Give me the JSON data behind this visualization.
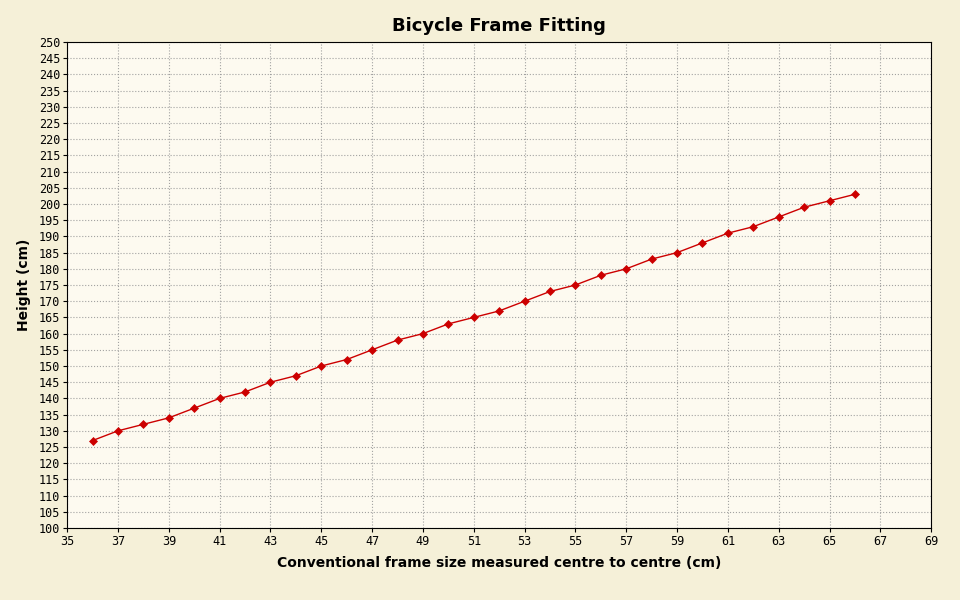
{
  "title": "Bicycle Frame Fitting",
  "xlabel": "Conventional frame size measured centre to centre (cm)",
  "ylabel": "Height (cm)",
  "background_color": "#F5F0D8",
  "plot_background_color": "#FDFAF0",
  "line_color": "#CC0000",
  "marker_color": "#CC0000",
  "x_data": [
    36,
    37,
    38,
    39,
    40,
    41,
    42,
    43,
    44,
    45,
    46,
    47,
    48,
    49,
    50,
    51,
    52,
    53,
    54,
    55,
    56,
    57,
    58,
    59,
    60,
    61,
    62,
    63,
    64,
    65,
    66
  ],
  "y_data": [
    127,
    130,
    132,
    134,
    137,
    140,
    142,
    145,
    147,
    150,
    152,
    155,
    158,
    160,
    163,
    165,
    167,
    170,
    173,
    175,
    178,
    180,
    183,
    185,
    188,
    191,
    193,
    196,
    199,
    201,
    203
  ],
  "xlim": [
    35,
    69
  ],
  "ylim": [
    100,
    250
  ],
  "xticks": [
    35,
    37,
    39,
    41,
    43,
    45,
    47,
    49,
    51,
    53,
    55,
    57,
    59,
    61,
    63,
    65,
    67,
    69
  ],
  "yticks": [
    100,
    105,
    110,
    115,
    120,
    125,
    130,
    135,
    140,
    145,
    150,
    155,
    160,
    165,
    170,
    175,
    180,
    185,
    190,
    195,
    200,
    205,
    210,
    215,
    220,
    225,
    230,
    235,
    240,
    245,
    250
  ],
  "title_fontsize": 13,
  "label_fontsize": 10,
  "tick_fontsize": 8.5,
  "spine_color": "#000000",
  "grid_color": "#999999",
  "grid_linestyle": ":",
  "grid_linewidth": 0.8
}
